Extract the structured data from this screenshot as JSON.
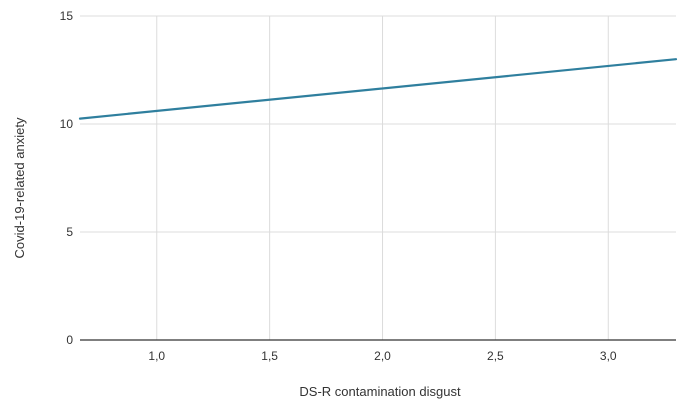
{
  "chart_data": {
    "type": "line",
    "title": "",
    "xlabel": "DS-R contamination disgust",
    "ylabel": "Covid-19-related anxiety",
    "xlim": [
      0.66,
      3.3
    ],
    "ylim": [
      0,
      15
    ],
    "x_ticks": [
      1.0,
      1.5,
      2.0,
      2.5,
      3.0
    ],
    "x_tick_labels": [
      "1,0",
      "1,5",
      "2,0",
      "2,5",
      "3,0"
    ],
    "y_ticks": [
      0,
      5,
      10,
      15
    ],
    "y_tick_labels": [
      "0",
      "5",
      "10",
      "15"
    ],
    "grid": true,
    "legend": "none",
    "series": [
      {
        "x": [
          0.66,
          3.3
        ],
        "y": [
          10.25,
          13.0
        ],
        "color": "#2f7f9e"
      }
    ]
  }
}
